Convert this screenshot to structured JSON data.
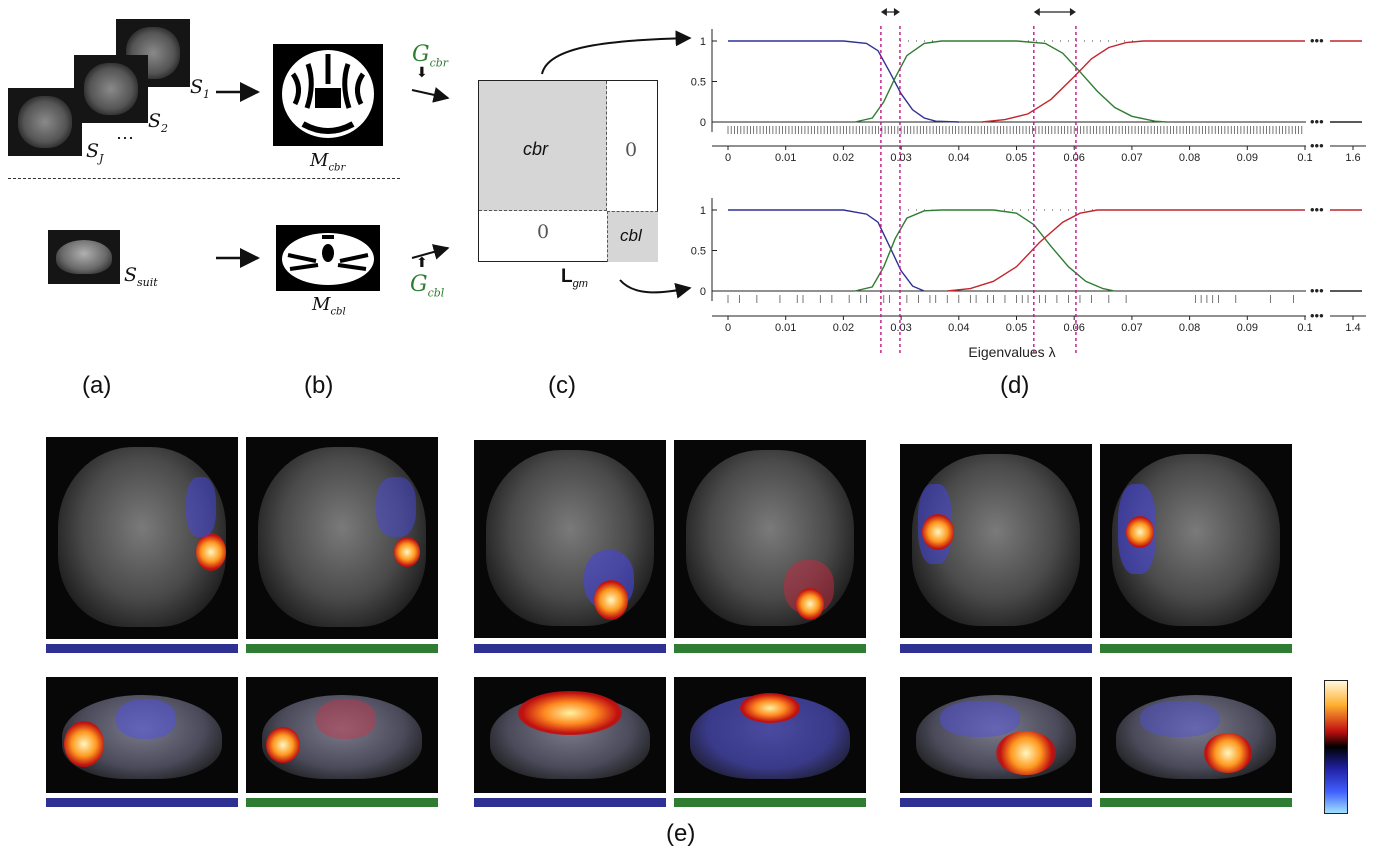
{
  "panel_labels": {
    "a": "(a)",
    "b": "(b)",
    "c": "(c)",
    "d": "(d)",
    "e": "(e)"
  },
  "panel_a": {
    "subjects": [
      "S",
      "S",
      "S"
    ],
    "subject_subscripts": [
      "1",
      "2",
      "J"
    ],
    "ellipsis": "⋯",
    "suit_label": "S",
    "suit_subscript": "suit"
  },
  "panel_b": {
    "mask_cbr": "M",
    "mask_cbr_sub": "cbr",
    "mask_cbl": "M",
    "mask_cbl_sub": "cbl",
    "graph_cbr": "G",
    "graph_cbr_sub": "cbr",
    "graph_cbl": "G",
    "graph_cbl_sub": "cbl"
  },
  "panel_c": {
    "block_cbr": "cbr",
    "block_cbl": "cbl",
    "zero_top": "0",
    "zero_bottom": "0",
    "matrix_label": "L",
    "matrix_sub": "gm"
  },
  "chart_data": [
    {
      "type": "line",
      "title": "",
      "xlabel": "",
      "ylabel": "",
      "xlim": [
        0,
        0.1
      ],
      "ylim": [
        0,
        1
      ],
      "x_ticks": [
        "0",
        "0.01",
        "0.02",
        "0.03",
        "0.04",
        "0.05",
        "0.06",
        "0.07",
        "0.08",
        "0.09",
        "0.1"
      ],
      "x_tick_break": "1.6",
      "y_ticks": [
        "0",
        "0.5",
        "1"
      ],
      "series": [
        {
          "color": "#2e3192",
          "x": [
            0,
            0.02,
            0.024,
            0.026,
            0.028,
            0.03,
            0.032,
            0.034,
            0.036,
            0.04
          ],
          "y": [
            1,
            1,
            0.97,
            0.88,
            0.62,
            0.35,
            0.15,
            0.05,
            0.01,
            0
          ]
        },
        {
          "color": "#2f7d32",
          "x": [
            0.022,
            0.025,
            0.027,
            0.029,
            0.031,
            0.034,
            0.037,
            0.05,
            0.055,
            0.058,
            0.061,
            0.064,
            0.067,
            0.07,
            0.074,
            0.076
          ],
          "y": [
            0,
            0.05,
            0.25,
            0.55,
            0.82,
            0.97,
            1,
            1,
            0.97,
            0.85,
            0.62,
            0.38,
            0.18,
            0.07,
            0.01,
            0
          ]
        },
        {
          "color": "#c1272d",
          "x": [
            0.044,
            0.048,
            0.052,
            0.056,
            0.06,
            0.063,
            0.066,
            0.069,
            0.072,
            0.076,
            0.1
          ],
          "y": [
            0,
            0.03,
            0.1,
            0.28,
            0.56,
            0.78,
            0.92,
            0.98,
            1,
            1,
            1
          ]
        }
      ],
      "eigenvalue_count": 180
    },
    {
      "type": "line",
      "title": "",
      "xlabel": "Eigenvalues λ",
      "ylabel": "",
      "xlim": [
        0,
        0.1
      ],
      "ylim": [
        0,
        1
      ],
      "x_ticks": [
        "0",
        "0.01",
        "0.02",
        "0.03",
        "0.04",
        "0.05",
        "0.06",
        "0.07",
        "0.08",
        "0.09",
        "0.1"
      ],
      "x_tick_break": "1.4",
      "y_ticks": [
        "0",
        "0.5",
        "1"
      ],
      "series": [
        {
          "color": "#2e3192",
          "x": [
            0,
            0.02,
            0.024,
            0.026,
            0.028,
            0.03,
            0.032,
            0.034
          ],
          "y": [
            1,
            1,
            0.95,
            0.85,
            0.55,
            0.25,
            0.06,
            0
          ]
        },
        {
          "color": "#2f7d32",
          "x": [
            0.022,
            0.025,
            0.027,
            0.029,
            0.031,
            0.034,
            0.037,
            0.046,
            0.05,
            0.053,
            0.056,
            0.059,
            0.062,
            0.065,
            0.067
          ],
          "y": [
            0,
            0.05,
            0.3,
            0.65,
            0.9,
            0.99,
            1,
            1,
            0.96,
            0.82,
            0.55,
            0.3,
            0.12,
            0.03,
            0
          ]
        },
        {
          "color": "#c1272d",
          "x": [
            0.038,
            0.042,
            0.046,
            0.05,
            0.054,
            0.058,
            0.061,
            0.064,
            0.067,
            0.1
          ],
          "y": [
            0,
            0.03,
            0.12,
            0.3,
            0.6,
            0.85,
            0.96,
            1,
            1,
            1
          ]
        }
      ],
      "eigenvalues": [
        0.0,
        0.002,
        0.005,
        0.009,
        0.012,
        0.013,
        0.016,
        0.018,
        0.021,
        0.023,
        0.024,
        0.027,
        0.028,
        0.031,
        0.033,
        0.035,
        0.036,
        0.038,
        0.04,
        0.042,
        0.043,
        0.045,
        0.046,
        0.048,
        0.05,
        0.051,
        0.052,
        0.054,
        0.055,
        0.057,
        0.059,
        0.061,
        0.063,
        0.066,
        0.069,
        0.081,
        0.082,
        0.083,
        0.084,
        0.085,
        0.088,
        0.094,
        0.098
      ]
    }
  ],
  "colorbar": {
    "plus": "+",
    "minus": "–"
  }
}
